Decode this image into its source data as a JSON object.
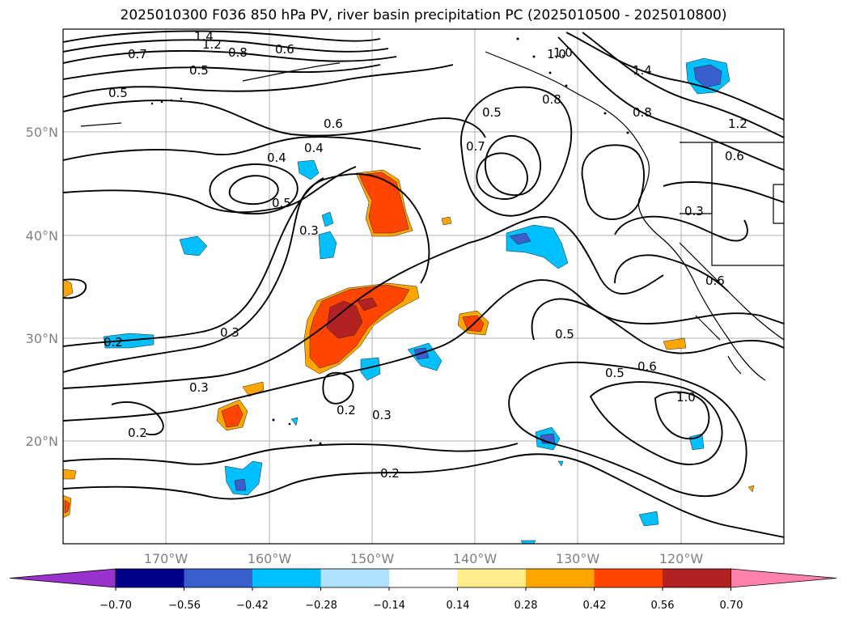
{
  "title": "2025010300 F036 850 hPa PV, river basin precipitation PC (2025010500 - 2025010800)",
  "latitude_labels": [
    "50°N",
    "40°N",
    "30°N",
    "20°N"
  ],
  "longitude_labels": [
    "170°W",
    "160°W",
    "150°W",
    "140°W",
    "130°W",
    "120°W"
  ],
  "contour_labels": [
    "1.4",
    "1.2",
    "1.0",
    "0.8",
    "0.7",
    "0.6",
    "0.5",
    "0.5",
    "0.6",
    "0.4",
    "0.4",
    "0.5",
    "0.3",
    "0.5",
    "0.7",
    "1.0",
    "0.8",
    "1.4",
    "1.2",
    "0.8",
    "0.6",
    "0.3",
    "0.6",
    "0.2",
    "0.3",
    "0.3",
    "0.2",
    "0.2",
    "0.3",
    "0.2",
    "0.5",
    "0.5",
    "0.6",
    "1.0"
  ],
  "colorbar": {
    "ticks": [
      "−0.70",
      "−0.56",
      "−0.42",
      "−0.28",
      "−0.14",
      "0.14",
      "0.28",
      "0.42",
      "0.56",
      "0.70"
    ],
    "colors": [
      "#9932cc",
      "#00008b",
      "#3a5fcd",
      "#00bfff",
      "#b0e2ff",
      "#ffffff",
      "#ffec8b",
      "#ffa500",
      "#ff4500",
      "#b22222",
      "#ff82ab"
    ]
  }
}
